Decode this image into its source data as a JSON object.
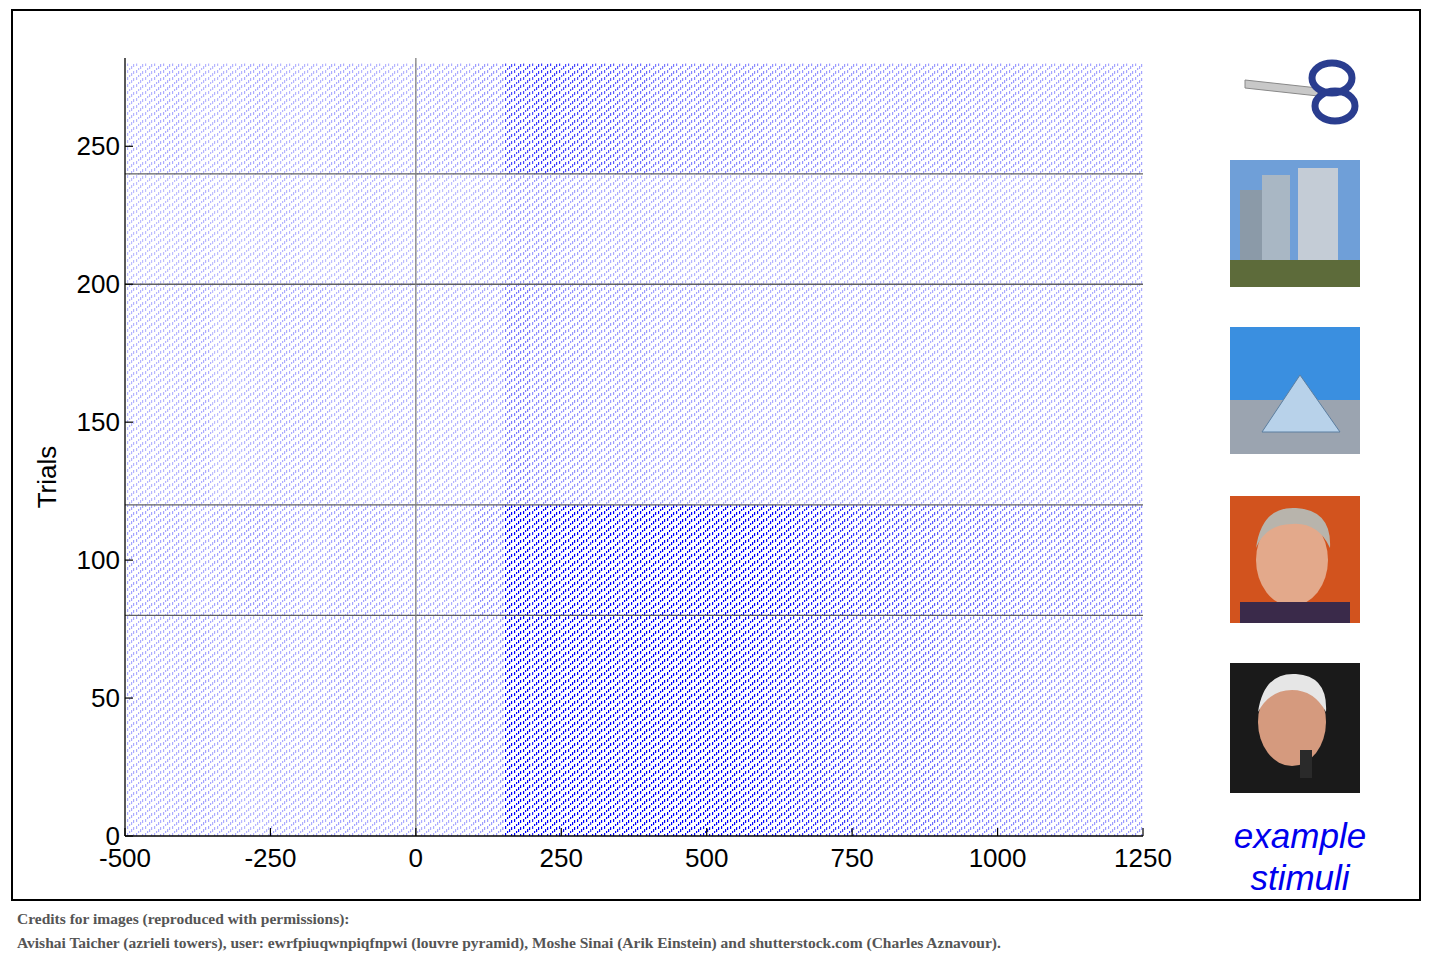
{
  "chart_data": {
    "type": "raster",
    "ylabel": "Trials",
    "xlim": [
      -500,
      1250
    ],
    "xticks": [
      -500,
      -250,
      0,
      250,
      500,
      750,
      1000,
      1250
    ],
    "ylim": [
      0,
      282
    ],
    "yticks": [
      0,
      50,
      100,
      150,
      200,
      250
    ],
    "stimulus_onset": 0,
    "color": "#0000ff",
    "zlim": [
      0,
      50
    ],
    "time_bins": [
      -500,
      -450,
      -400,
      -350,
      -300,
      -250,
      -200,
      -150,
      -100,
      -50,
      0,
      50,
      100,
      150,
      200,
      250,
      300,
      350,
      400,
      450,
      500,
      550,
      600,
      650,
      700,
      750,
      800,
      850,
      900,
      950,
      1000,
      1050,
      1100,
      1150,
      1200,
      1250
    ],
    "groups": [
      {
        "start": 0,
        "end": 80,
        "rates": [
          10,
          10,
          11,
          10,
          9,
          10,
          10,
          11,
          10,
          10,
          10,
          10,
          12,
          38,
          45,
          45,
          42,
          40,
          38,
          36,
          32,
          30,
          28,
          26,
          24,
          20,
          18,
          18,
          16,
          15,
          14,
          13,
          12,
          12,
          12
        ]
      },
      {
        "start": 80,
        "end": 120,
        "rates": [
          11,
          11,
          10,
          11,
          12,
          11,
          10,
          11,
          11,
          10,
          10,
          10,
          14,
          42,
          50,
          50,
          48,
          45,
          42,
          40,
          36,
          34,
          30,
          28,
          26,
          24,
          22,
          20,
          18,
          18,
          16,
          15,
          15,
          14,
          14
        ]
      },
      {
        "start": 120,
        "end": 200,
        "rates": [
          9,
          9,
          10,
          8,
          9,
          10,
          10,
          9,
          8,
          9,
          9,
          9,
          10,
          16,
          14,
          13,
          12,
          12,
          11,
          11,
          10,
          10,
          10,
          10,
          10,
          10,
          10,
          10,
          10,
          10,
          10,
          10,
          10,
          10,
          10
        ]
      },
      {
        "start": 200,
        "end": 240,
        "rates": [
          8,
          8,
          9,
          8,
          8,
          9,
          8,
          8,
          9,
          8,
          8,
          8,
          9,
          12,
          12,
          11,
          10,
          10,
          10,
          9,
          9,
          9,
          9,
          9,
          9,
          9,
          9,
          9,
          9,
          9,
          9,
          9,
          9,
          9,
          9
        ]
      },
      {
        "start": 240,
        "end": 280,
        "rates": [
          9,
          10,
          9,
          9,
          10,
          9,
          9,
          10,
          9,
          9,
          10,
          10,
          12,
          22,
          24,
          22,
          20,
          18,
          16,
          15,
          14,
          14,
          13,
          13,
          12,
          12,
          12,
          12,
          13,
          12,
          12,
          11,
          11,
          11,
          11
        ]
      }
    ]
  },
  "stimuli_label": "example stimuli",
  "credits": {
    "title": "Credits for images (reproduced with permissions):",
    "text": "Avishai Taicher (azrieli towers), user: ewrfpiuqwnpiqfnpwi (louvre pyramid), Moshe Sinai (Arik Einstein) and shutterstock.com (Charles Aznavour)."
  }
}
